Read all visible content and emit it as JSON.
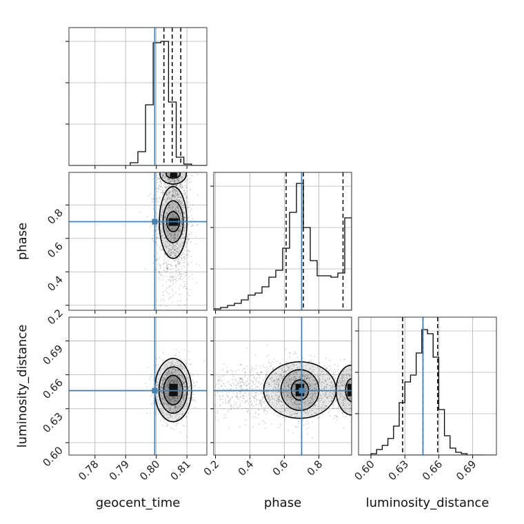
{
  "chart_data": {
    "type": "corner",
    "parameters": [
      "geocent_time",
      "phase",
      "luminosity_distance"
    ],
    "truth": {
      "geocent_time": 0.7995,
      "phase": 0.7,
      "luminosity_distance": 0.646
    },
    "colors": {
      "truth": "#4682b4",
      "hist": "#000000",
      "grid": "#b0b0b0",
      "contour": "#000000"
    },
    "grid": true,
    "panels": [
      {
        "id": "hist-geocent_time",
        "kind": "hist",
        "param": "geocent_time",
        "xlim": [
          0.7715,
          0.8165
        ],
        "ylim": [
          0,
          1.0
        ],
        "ticks": [
          0.78,
          0.79,
          0.8,
          0.81
        ],
        "tick_labels": [
          "0.78",
          "0.79",
          "0.80",
          "0.81"
        ],
        "bins": [
          0.7915,
          0.794,
          0.7965,
          0.799,
          0.8015,
          0.804,
          0.8065,
          0.809,
          0.8115,
          0.814
        ],
        "counts": [
          0.02,
          0.1,
          0.44,
          0.89,
          0.9,
          0.46,
          0.06,
          0.01,
          0,
          0
        ],
        "quantiles": [
          0.8025,
          0.8052,
          0.808
        ]
      },
      {
        "id": "hist-phase",
        "kind": "hist",
        "param": "phase",
        "xlim": [
          0.19,
          0.99
        ],
        "ylim": [
          0,
          1.0
        ],
        "ticks": [
          0.2,
          0.4,
          0.6,
          0.8
        ],
        "tick_labels": [
          "0.2",
          "0.4",
          "0.6",
          "0.8"
        ],
        "bins": [
          0.19,
          0.23,
          0.27,
          0.31,
          0.35,
          0.39,
          0.43,
          0.47,
          0.51,
          0.55,
          0.59,
          0.63,
          0.67,
          0.71,
          0.75,
          0.79,
          0.83,
          0.87,
          0.91,
          0.95
        ],
        "counts": [
          0.01,
          0.02,
          0.035,
          0.05,
          0.075,
          0.11,
          0.125,
          0.17,
          0.24,
          0.29,
          0.45,
          0.71,
          0.92,
          0.6,
          0.36,
          0.25,
          0.25,
          0.24,
          0.27,
          0.67
        ],
        "quantiles": [
          0.61,
          0.71,
          0.94
        ]
      },
      {
        "id": "hist-luminosity_distance",
        "kind": "hist",
        "param": "luminosity_distance",
        "xlim": [
          0.589,
          0.711
        ],
        "ylim": [
          0,
          1.0
        ],
        "ticks": [
          0.6,
          0.63,
          0.66,
          0.69
        ],
        "tick_labels": [
          "0.60",
          "0.63",
          "0.66",
          "0.69"
        ],
        "bins": [
          0.6,
          0.605,
          0.61,
          0.615,
          0.62,
          0.625,
          0.63,
          0.635,
          0.64,
          0.645,
          0.65,
          0.655,
          0.66,
          0.665,
          0.67,
          0.675,
          0.68,
          0.685,
          0.69,
          0.695
        ],
        "counts": [
          0.01,
          0.04,
          0.07,
          0.12,
          0.21,
          0.38,
          0.53,
          0.58,
          0.74,
          0.91,
          0.88,
          0.71,
          0.33,
          0.14,
          0.05,
          0.02,
          0.01,
          0,
          0,
          0
        ],
        "quantiles": [
          0.628,
          0.646,
          0.659
        ]
      },
      {
        "id": "scatter-geocent_time-phase",
        "kind": "2d",
        "xparam": "geocent_time",
        "yparam": "phase",
        "xlim": [
          0.7715,
          0.8165
        ],
        "ylim": [
          0.17,
          0.995
        ],
        "yticks": [
          0.2,
          0.4,
          0.6,
          0.8
        ],
        "ytick_labels": [
          "0.2",
          "0.4",
          "0.6",
          "0.8"
        ],
        "blobs": [
          {
            "cx": 0.8055,
            "cy": 0.7,
            "sx": 0.0027,
            "sy": 0.12,
            "n": 1100
          },
          {
            "cx": 0.8055,
            "cy": 0.96,
            "sx": 0.0025,
            "sy": 0.05,
            "n": 420
          },
          {
            "cx": 0.8055,
            "cy": 0.45,
            "sx": 0.003,
            "sy": 0.13,
            "n": 280
          }
        ],
        "contours": [
          {
            "cx": 0.8055,
            "cy": 0.695,
            "rx": 0.0045,
            "ry": 0.215
          },
          {
            "cx": 0.8055,
            "cy": 0.7,
            "rx": 0.0033,
            "ry": 0.125
          },
          {
            "cx": 0.8055,
            "cy": 0.7,
            "rx": 0.0021,
            "ry": 0.06
          },
          {
            "cx": 0.8055,
            "cy": 0.985,
            "rx": 0.0043,
            "ry": 0.06
          },
          {
            "cx": 0.8055,
            "cy": 0.985,
            "rx": 0.0023,
            "ry": 0.025
          }
        ],
        "cores": [
          {
            "x0": 0.804,
            "x1": 0.8072,
            "y0": 0.675,
            "y1": 0.72
          },
          {
            "x0": 0.8045,
            "x1": 0.8068,
            "y0": 0.965,
            "y1": 0.995
          }
        ]
      },
      {
        "id": "scatter-geocent_time-luminosity_distance",
        "kind": "2d",
        "xparam": "geocent_time",
        "yparam": "luminosity_distance",
        "xlim": [
          0.7715,
          0.8165
        ],
        "ylim": [
          0.589,
          0.711
        ],
        "yticks": [
          0.6,
          0.63,
          0.66,
          0.69
        ],
        "ytick_labels": [
          "0.60",
          "0.63",
          "0.66",
          "0.69"
        ],
        "blobs": [
          {
            "cx": 0.8055,
            "cy": 0.6465,
            "sx": 0.0028,
            "sy": 0.012,
            "n": 1300
          }
        ],
        "contours": [
          {
            "cx": 0.8055,
            "cy": 0.6465,
            "rx": 0.006,
            "ry": 0.028
          },
          {
            "cx": 0.8055,
            "cy": 0.6465,
            "rx": 0.0046,
            "ry": 0.0205
          },
          {
            "cx": 0.8055,
            "cy": 0.6465,
            "rx": 0.0031,
            "ry": 0.013
          }
        ],
        "cores": [
          {
            "x0": 0.8042,
            "x1": 0.807,
            "y0": 0.641,
            "y1": 0.652
          }
        ]
      },
      {
        "id": "scatter-phase-luminosity_distance",
        "kind": "2d",
        "xparam": "phase",
        "yparam": "luminosity_distance",
        "xlim": [
          0.19,
          0.99
        ],
        "ylim": [
          0.589,
          0.711
        ],
        "blobs": [
          {
            "cx": 0.68,
            "cy": 0.6465,
            "sx": 0.08,
            "sy": 0.012,
            "n": 1000
          },
          {
            "cx": 0.4,
            "cy": 0.6465,
            "sx": 0.14,
            "sy": 0.012,
            "n": 550
          },
          {
            "cx": 0.95,
            "cy": 0.6465,
            "sx": 0.06,
            "sy": 0.012,
            "n": 500
          }
        ],
        "contours": [
          {
            "cx": 0.69,
            "cy": 0.6465,
            "rx": 0.21,
            "ry": 0.025
          },
          {
            "cx": 0.69,
            "cy": 0.6465,
            "rx": 0.11,
            "ry": 0.018
          },
          {
            "cx": 0.69,
            "cy": 0.6465,
            "rx": 0.05,
            "ry": 0.009
          },
          {
            "cx": 0.99,
            "cy": 0.6465,
            "rx": 0.09,
            "ry": 0.022
          },
          {
            "cx": 0.99,
            "cy": 0.6465,
            "rx": 0.035,
            "ry": 0.01
          }
        ],
        "cores": [
          {
            "x0": 0.665,
            "x1": 0.715,
            "y0": 0.641,
            "y1": 0.652
          },
          {
            "x0": 0.965,
            "x1": 0.99,
            "y0": 0.641,
            "y1": 0.652
          }
        ]
      }
    ]
  }
}
